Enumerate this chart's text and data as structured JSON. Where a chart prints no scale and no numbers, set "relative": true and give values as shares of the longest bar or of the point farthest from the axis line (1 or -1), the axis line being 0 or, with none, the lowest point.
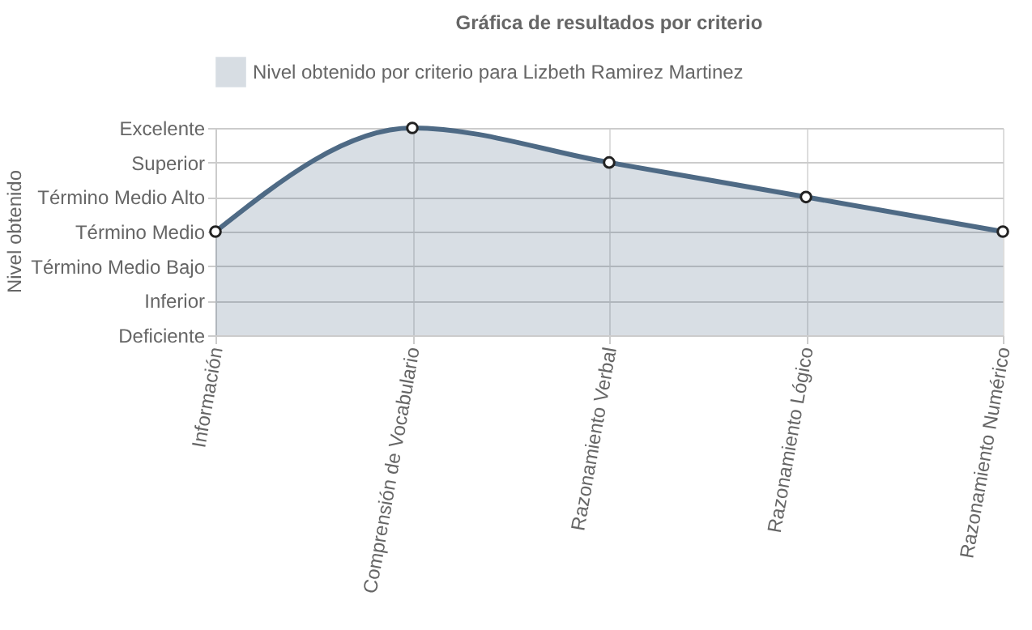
{
  "chart_data": {
    "type": "area",
    "title": "Gráfica de resultados por criterio",
    "annotations": [
      "Nivel obtenido"
    ],
    "categories": [
      "Información",
      "Comprensión de Vocabulario",
      "Razonamiento Verbal",
      "Razonamiento Lógico",
      "Razonamiento Numérico"
    ],
    "y_categories": [
      "Excelente",
      "Superior",
      "Término Medio Alto",
      "Término Medio",
      "Término Medio Bajo",
      "Inferior",
      "Deficiente"
    ],
    "series": [
      {
        "name": "Nivel obtenido por criterio para Lizbeth Ramirez Martinez",
        "color": "#4e6a85",
        "values": [
          0.5,
          1,
          0.8333,
          0.6667,
          0.5
        ]
      }
    ],
    "relative": true,
    "grid": true,
    "legend": "top",
    "marker": "circle",
    "line_style": "solid"
  }
}
